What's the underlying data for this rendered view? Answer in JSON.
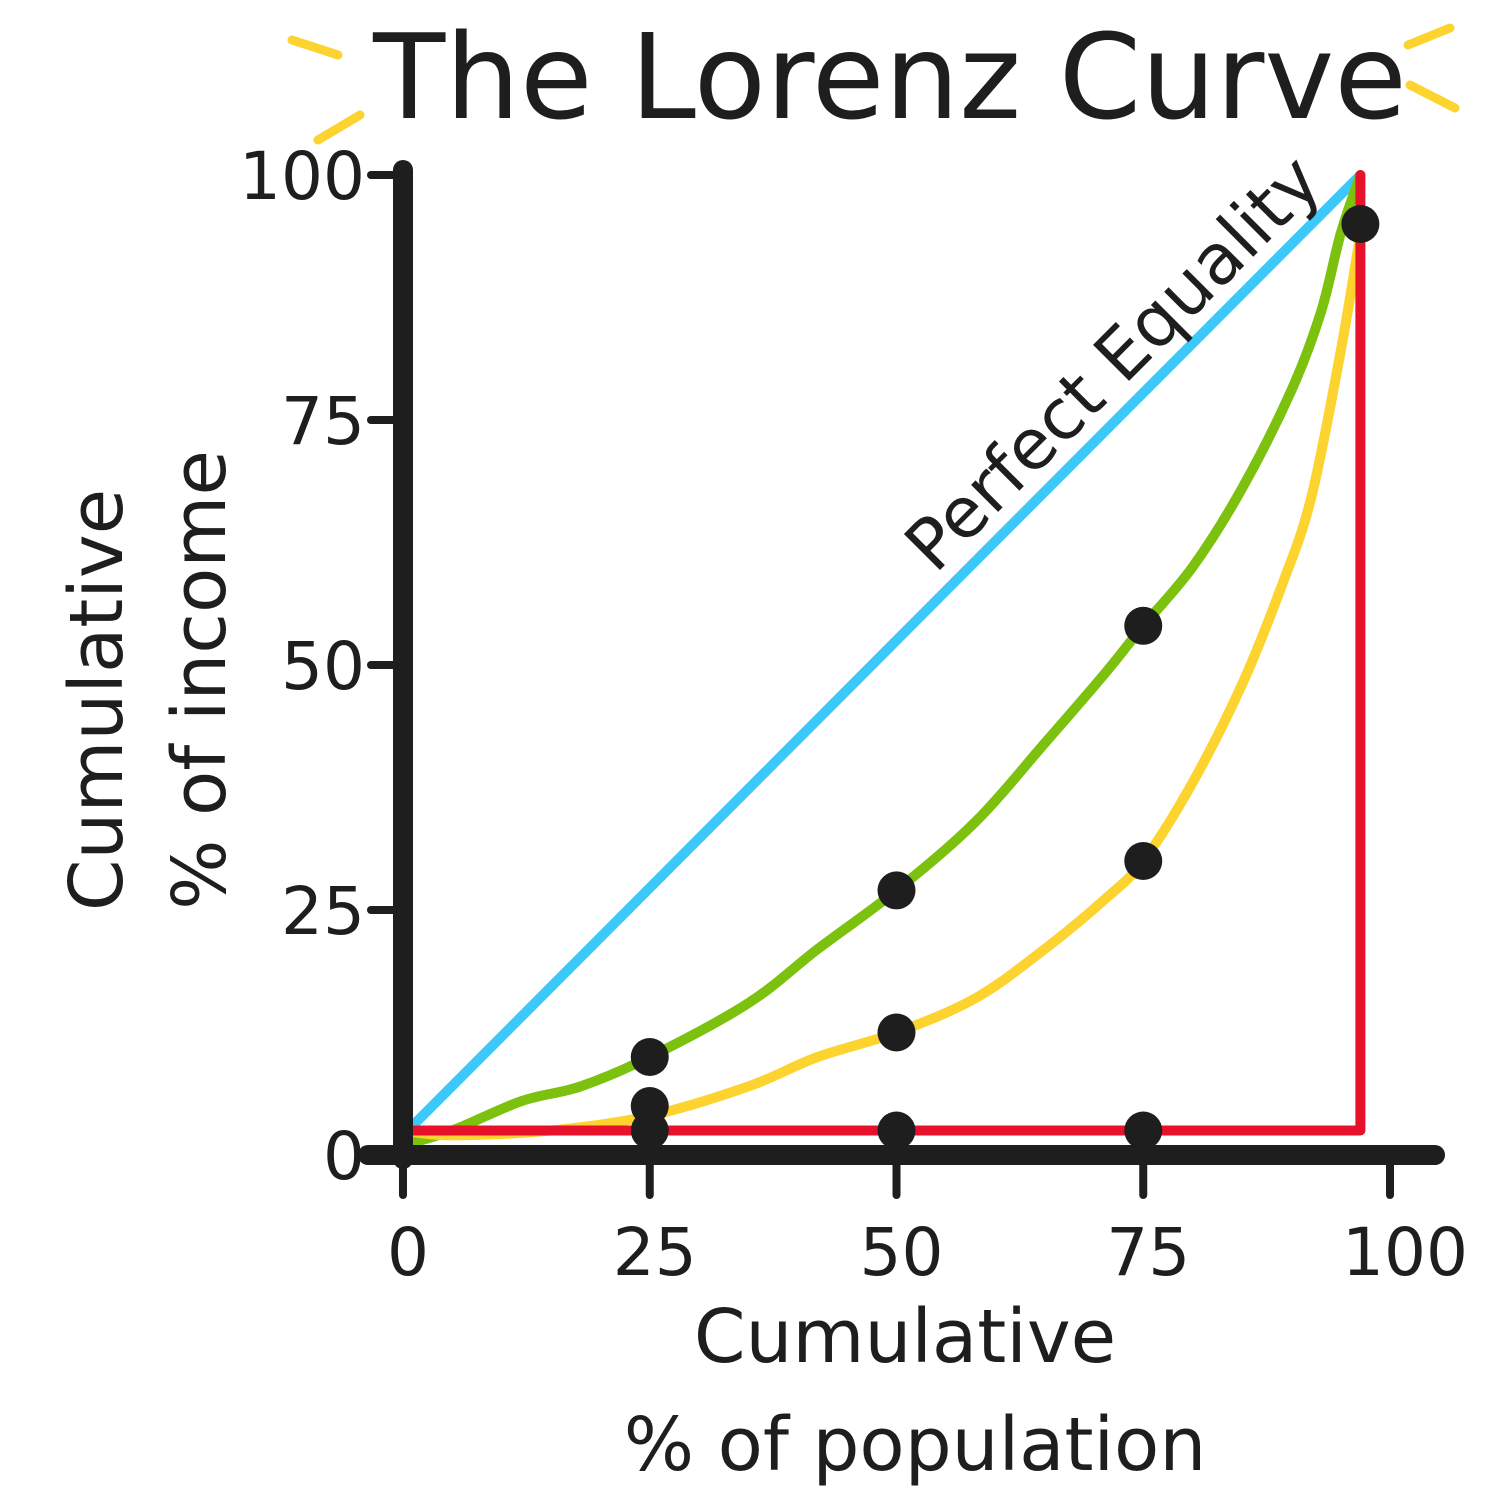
{
  "chart_data": {
    "type": "line",
    "title": "The Lorenz Curve",
    "xlabel": [
      "Cumulative",
      "% of population"
    ],
    "ylabel": [
      "Cumulative",
      "% of income"
    ],
    "xlim": [
      0,
      100
    ],
    "ylim": [
      0,
      100
    ],
    "x_ticks": [
      "0",
      "25",
      "50",
      "75",
      "100"
    ],
    "y_ticks": [
      "0",
      "25",
      "50",
      "75",
      "100"
    ],
    "annotation": "Perfect Equality",
    "colors": {
      "axis": "#1e1e1e",
      "equality": "#3cc8f8",
      "green": "#7bc10d",
      "yellow": "#fdd32f",
      "red": "#e8112b",
      "accent": "#fdd32f"
    },
    "series": [
      {
        "color": "#3cc8f8",
        "points": [
          [
            0,
            2
          ],
          [
            97,
            100
          ]
        ]
      },
      {
        "color": "#7bc10d",
        "points": [
          [
            0,
            1
          ],
          [
            5,
            2.5
          ],
          [
            12,
            5.5
          ],
          [
            18,
            7
          ],
          [
            25,
            10
          ],
          [
            35,
            15.5
          ],
          [
            42,
            21
          ],
          [
            50,
            27
          ],
          [
            58,
            34
          ],
          [
            65,
            42
          ],
          [
            71,
            49
          ],
          [
            75,
            54
          ],
          [
            80,
            60
          ],
          [
            85,
            68
          ],
          [
            90,
            78
          ],
          [
            93,
            86
          ],
          [
            95,
            94
          ],
          [
            97,
            100
          ]
        ]
      },
      {
        "color": "#fdd32f",
        "points": [
          [
            0,
            2.5
          ],
          [
            5,
            2
          ],
          [
            15,
            2.5
          ],
          [
            25,
            4
          ],
          [
            35,
            7
          ],
          [
            42,
            10
          ],
          [
            50,
            12.5
          ],
          [
            58,
            16
          ],
          [
            65,
            21
          ],
          [
            71,
            26
          ],
          [
            75,
            30
          ],
          [
            80,
            38
          ],
          [
            85,
            48
          ],
          [
            89,
            58
          ],
          [
            92,
            67
          ],
          [
            95,
            82
          ],
          [
            97,
            94
          ]
        ]
      },
      {
        "color": "#e8112b",
        "points": [
          [
            0,
            2.5
          ],
          [
            97,
            2.5
          ],
          [
            97,
            100
          ]
        ]
      }
    ],
    "markers": [
      [
        25,
        10
      ],
      [
        25,
        5
      ],
      [
        25,
        2.5
      ],
      [
        50,
        27
      ],
      [
        50,
        12.5
      ],
      [
        50,
        2.5
      ],
      [
        75,
        54
      ],
      [
        75,
        30
      ],
      [
        75,
        2.5
      ],
      [
        97,
        95
      ]
    ]
  }
}
